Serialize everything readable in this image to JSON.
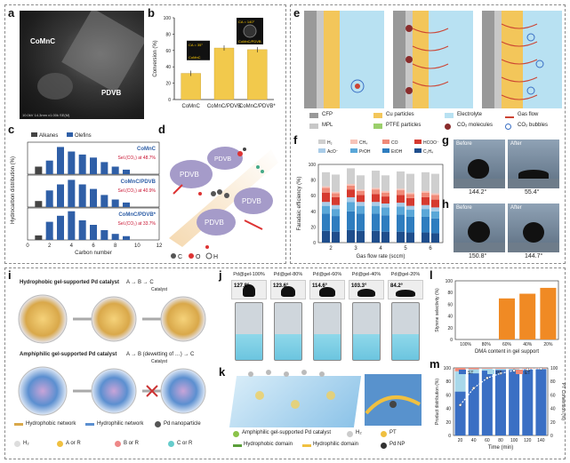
{
  "panels": {
    "a": "a",
    "b": "b",
    "c": "c",
    "d": "d",
    "e": "e",
    "f": "f",
    "g": "g",
    "h": "h",
    "i": "i",
    "j": "j",
    "k": "k",
    "l": "l",
    "m": "m"
  },
  "a": {
    "label_comnc": "CoMnC",
    "label_pdvb": "PDVB",
    "footer": "10.0kV 14.3mm x1.00k SE(M)"
  },
  "b": {
    "ylabel": "Conversion (%)",
    "inset_left_angle": "CA = 35°",
    "inset_left_name": "CoMnC",
    "inset_right_angle": "CA = 140°",
    "inset_right_name": "CoMnC/PDVB"
  },
  "c": {
    "ylabel": "Hydrocarbon distribution (%)",
    "xlabel": "Carbon number",
    "legend": [
      "Alkanes",
      "Olefins"
    ],
    "rows": [
      {
        "name": "CoMnC",
        "sel": "Sel.(CO₂) at 48.7%"
      },
      {
        "name": "CoMnC/PDVB",
        "sel": "Sel.(CO₂) at 40.9%"
      },
      {
        "name": "CoMnC/PDVB*",
        "sel": "Sel.(CO₂) at 33.7%"
      }
    ]
  },
  "d": {
    "blobs": [
      "PDVB",
      "PDVB",
      "PDVB",
      "PDVB"
    ],
    "legend": [
      "C",
      "O",
      "H"
    ]
  },
  "e": {
    "legend": [
      "CFP",
      "Cu particles",
      "Electrolyte",
      "Gas flow",
      "MPL",
      "PTFE particles",
      "CO₂ molecules",
      "CO₂ bubbles"
    ]
  },
  "f": {
    "ylabel": "Faradaic efficiency (%)",
    "xlabel": "Gas flow rate (sccm)",
    "legend": [
      "H₂",
      "CH₄",
      "CO",
      "HCOO⁻",
      "AcO⁻",
      "PrOH",
      "EtOH",
      "C₂H₄"
    ]
  },
  "g": {
    "before": "Before",
    "after": "After",
    "angle_before": "144.2°",
    "angle_after": "55.4°"
  },
  "h": {
    "before": "Before",
    "after": "After",
    "angle_before": "150.8°",
    "angle_after": "144.7°"
  },
  "i": {
    "top_title": "Hydrophobic gel-supported Pd catalyst",
    "bottom_title": "Amphiphilic gel-supported Pd catalyst",
    "top_scheme": "A → B → C",
    "bottom_scheme": "A → B (dewetting of …) → C",
    "catalyst": "Catalyst",
    "h2": "H₂",
    "legend": [
      "Hydrophobic network",
      "Hydrophilic network",
      "Pd nanoparticle",
      "H₂",
      "A or R",
      "B or R",
      "C or R"
    ]
  },
  "j": {
    "samples": [
      "Pd@gel-100%",
      "Pd@gel-80%",
      "Pd@gel-60%",
      "Pd@gel-40%",
      "Pd@gel-20%"
    ],
    "angles": [
      "127.8°",
      "123.6°",
      "114.6°",
      "103.3°",
      "84.2°"
    ]
  },
  "k": {
    "legend": [
      "Amphiphilic gel-supported Pd catalyst",
      "H₂",
      "PT",
      "Hydrophobic domain",
      "Hydrophilic domain",
      "Pd NP"
    ]
  },
  "l": {
    "ylabel": "Styrene selectivity (%)",
    "xlabel": "DMA content in gel support"
  },
  "m": {
    "ylabel": "Product distribution (%)",
    "ylabel2": "PT Conversion (%)",
    "xlabel": "Time (min)",
    "legend": [
      "ST",
      "PT",
      "ET"
    ]
  },
  "chart_data": [
    {
      "id": "b",
      "type": "bar",
      "categories": [
        "CoMnC",
        "CoMnC/PDVB",
        "CoMnC/PDVB*"
      ],
      "values": [
        32,
        63,
        61
      ],
      "ylim": [
        0,
        100
      ],
      "yticks": [
        0,
        20,
        40,
        60,
        80,
        100
      ],
      "colors": [
        "#f2c94c",
        "#f2c94c",
        "#f2c94c"
      ]
    },
    {
      "id": "c",
      "type": "bar",
      "xlim": [
        0,
        12
      ],
      "xticks": [
        0,
        2,
        4,
        6,
        8,
        10,
        12
      ],
      "panels": [
        {
          "alkanes": [
            [
              1,
              10
            ],
            [
              2,
              0
            ],
            [
              3,
              0
            ]
          ],
          "olefins": [
            [
              2,
              18
            ],
            [
              3,
              36
            ],
            [
              4,
              30
            ],
            [
              5,
              26
            ],
            [
              6,
              22
            ],
            [
              7,
              16
            ],
            [
              8,
              10
            ],
            [
              9,
              6
            ]
          ]
        },
        {
          "alkanes": [
            [
              1,
              8
            ],
            [
              2,
              3
            ]
          ],
          "olefins": [
            [
              2,
              22
            ],
            [
              3,
              30
            ],
            [
              4,
              36
            ],
            [
              5,
              30
            ],
            [
              6,
              24
            ],
            [
              7,
              16
            ],
            [
              8,
              10
            ],
            [
              9,
              6
            ]
          ]
        },
        {
          "alkanes": [
            [
              1,
              6
            ],
            [
              2,
              3
            ]
          ],
          "olefins": [
            [
              2,
              24
            ],
            [
              3,
              32
            ],
            [
              4,
              38
            ],
            [
              5,
              26
            ],
            [
              6,
              20
            ],
            [
              7,
              13
            ],
            [
              8,
              8
            ],
            [
              9,
              5
            ]
          ]
        }
      ]
    },
    {
      "id": "f",
      "type": "bar",
      "categories": [
        "2",
        "3",
        "4",
        "5",
        "6"
      ],
      "ylim": [
        0,
        100
      ],
      "yticks": [
        0,
        20,
        40,
        60,
        80,
        100
      ],
      "series": [
        {
          "name": "C₂H₄",
          "color": "#1f4e8c",
          "values": [
            [
              15,
              14
            ],
            [
              16,
              15
            ],
            [
              15,
              14
            ],
            [
              14,
              13
            ],
            [
              13,
              12
            ]
          ]
        },
        {
          "name": "EtOH",
          "color": "#2e7dbf",
          "values": [
            [
              22,
              20
            ],
            [
              24,
              22
            ],
            [
              22,
              21
            ],
            [
              22,
              20
            ],
            [
              20,
              19
            ]
          ]
        },
        {
          "name": "PrOH",
          "color": "#5aa7d8",
          "values": [
            [
              10,
              9
            ],
            [
              12,
              10
            ],
            [
              10,
              10
            ],
            [
              10,
              9
            ],
            [
              10,
              9
            ]
          ]
        },
        {
          "name": "AcO⁻",
          "color": "#a9cce8",
          "values": [
            [
              5,
              5
            ],
            [
              6,
              5
            ],
            [
              5,
              5
            ],
            [
              5,
              5
            ],
            [
              5,
              5
            ]
          ]
        },
        {
          "name": "HCOO⁻",
          "color": "#d63a2f",
          "values": [
            [
              12,
              10
            ],
            [
              10,
              9
            ],
            [
              10,
              9
            ],
            [
              10,
              10
            ],
            [
              10,
              10
            ]
          ]
        },
        {
          "name": "CO",
          "color": "#f08a78",
          "values": [
            [
              6,
              5
            ],
            [
              5,
              5
            ],
            [
              6,
              5
            ],
            [
              6,
              5
            ],
            [
              6,
              6
            ]
          ]
        },
        {
          "name": "CH₄",
          "color": "#f6c3b8",
          "values": [
            [
              2,
              2
            ],
            [
              2,
              2
            ],
            [
              2,
              2
            ],
            [
              2,
              2
            ],
            [
              2,
              2
            ]
          ]
        },
        {
          "name": "H₂",
          "color": "#cfcfcf",
          "values": [
            [
              18,
              22
            ],
            [
              20,
              18
            ],
            [
              22,
              20
            ],
            [
              22,
              24
            ],
            [
              24,
              25
            ]
          ]
        }
      ]
    },
    {
      "id": "l",
      "type": "bar",
      "categories": [
        "100%",
        "80%",
        "60%",
        "40%",
        "20%"
      ],
      "values": [
        0,
        0,
        70,
        78,
        88
      ],
      "ylim": [
        0,
        100
      ],
      "yticks": [
        0,
        20,
        40,
        60,
        80,
        100
      ],
      "color": "#f08a24"
    },
    {
      "id": "m",
      "type": "bar",
      "categories": [
        "20",
        "40",
        "60",
        "80",
        "100",
        "120",
        "140"
      ],
      "ylim": [
        0,
        100
      ],
      "yticks": [
        0,
        20,
        40,
        60,
        80,
        100
      ],
      "series": [
        {
          "name": "ST",
          "color": "#3a6fc4",
          "values": [
            65,
            92,
            96,
            97,
            97,
            98,
            98
          ]
        },
        {
          "name": "PT",
          "color": "#a8d8ea",
          "values": [
            30,
            6,
            3,
            2,
            2,
            1,
            1
          ]
        },
        {
          "name": "ET",
          "color": "#f08a78",
          "values": [
            5,
            2,
            1,
            1,
            1,
            1,
            1
          ]
        }
      ],
      "conversion": [
        45,
        70,
        85,
        92,
        96,
        98,
        99
      ]
    }
  ]
}
